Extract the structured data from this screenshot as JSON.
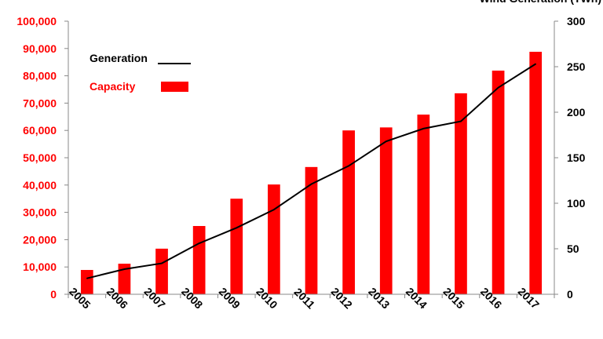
{
  "chart_data": {
    "type": "bar",
    "title": "",
    "categories": [
      "2005",
      "2006",
      "2007",
      "2008",
      "2009",
      "2010",
      "2011",
      "2012",
      "2013",
      "2014",
      "2015",
      "2016",
      "2017"
    ],
    "series": [
      {
        "name": "Capacity",
        "type": "bar",
        "axis": "left",
        "color": "#ff0000",
        "values": [
          8900,
          11200,
          16700,
          25000,
          35000,
          40200,
          46600,
          60000,
          61100,
          65800,
          73600,
          81900,
          88800
        ]
      },
      {
        "name": "Generation",
        "type": "line",
        "axis": "right",
        "color": "#000000",
        "values": [
          17.5,
          27.6,
          34,
          56,
          73,
          93,
          121,
          141,
          168,
          182,
          190,
          227,
          253
        ]
      }
    ],
    "y_left": {
      "label": "",
      "range": [
        0,
        100000
      ],
      "ticks": [
        "0",
        "10,000",
        "20,000",
        "30,000",
        "40,000",
        "50,000",
        "60,000",
        "70,000",
        "80,000",
        "90,000",
        "100,000"
      ],
      "tick_color": "#ff0000"
    },
    "y_right": {
      "label": "Wind Generation (TWh)",
      "range": [
        0,
        300
      ],
      "ticks": [
        "0",
        "50",
        "100",
        "150",
        "200",
        "250",
        "300"
      ],
      "tick_color": "#000000"
    },
    "legend": {
      "placement": "top-left",
      "entries": [
        "Generation",
        "Capacity"
      ]
    },
    "grid": false
  }
}
